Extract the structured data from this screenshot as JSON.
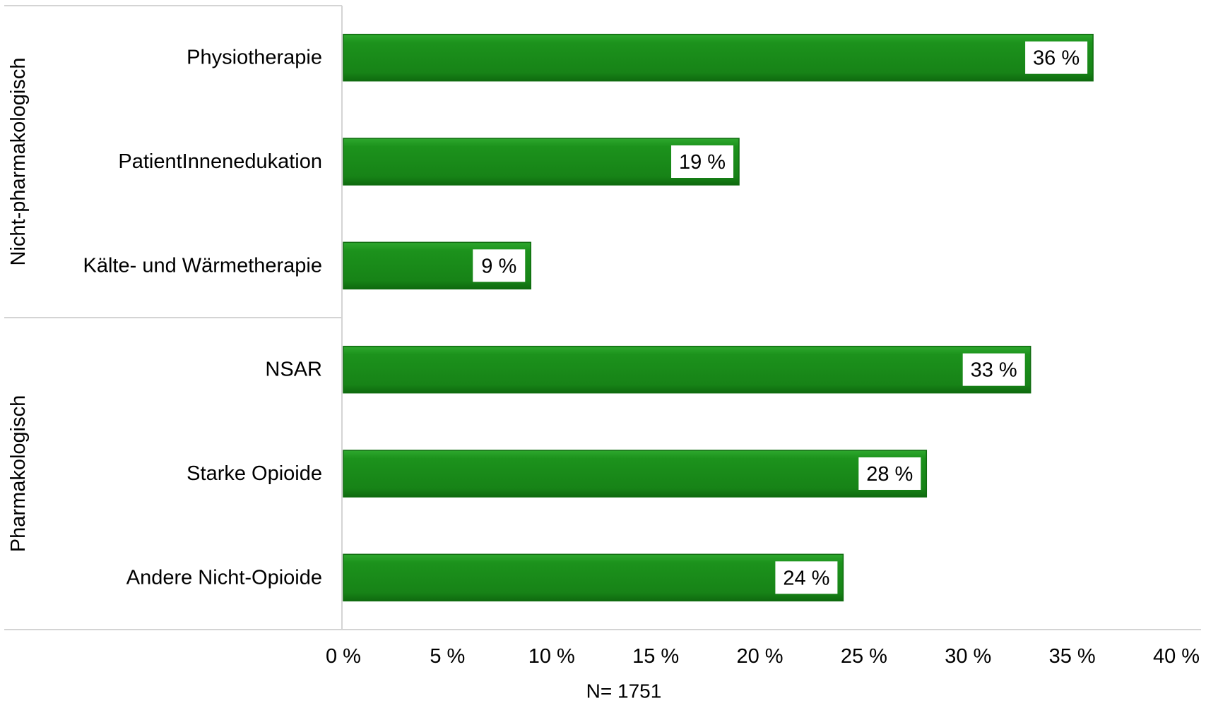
{
  "chart_data": {
    "type": "bar",
    "orientation": "horizontal",
    "groups": [
      {
        "label": "Nicht-pharmakologisch",
        "categories": [
          "Physiotherapie",
          "PatientInnenedukation",
          "Kälte- und Wärmetherapie"
        ]
      },
      {
        "label": "Pharmakologisch",
        "categories": [
          "NSAR",
          "Starke Opioide",
          "Andere Nicht-Opioide"
        ]
      }
    ],
    "categories": [
      "Physiotherapie",
      "PatientInnenedukation",
      "Kälte- und Wärmetherapie",
      "NSAR",
      "Starke Opioide",
      "Andere Nicht-Opioide"
    ],
    "values": [
      36,
      19,
      9,
      33,
      28,
      24
    ],
    "data_labels": [
      "36 %",
      "19 %",
      "9 %",
      "33 %",
      "28 %",
      "24 %"
    ],
    "xlim": [
      0,
      40
    ],
    "xticks": [
      "0 %",
      "5 %",
      "10 %",
      "15 %",
      "20 %",
      "25 %",
      "30 %",
      "35 %",
      "40 %"
    ],
    "note": "N= 1751",
    "grid": false,
    "legend": "none",
    "bar_color": "#1a8a1a",
    "bar_edge_color": "#0f6b0f"
  }
}
